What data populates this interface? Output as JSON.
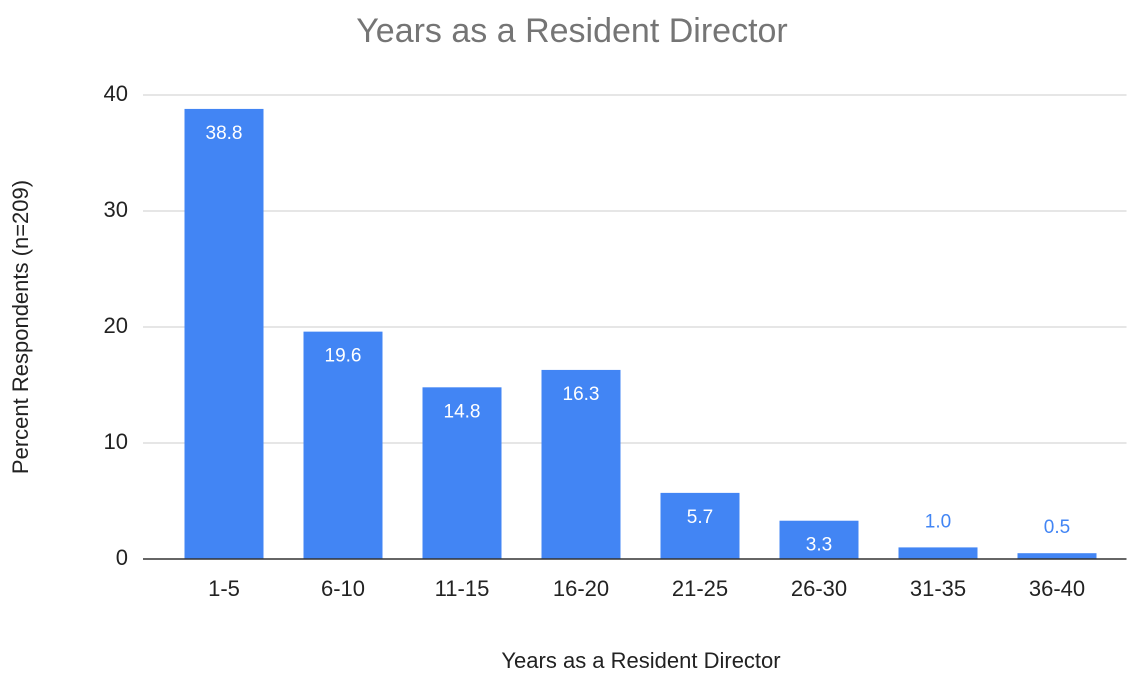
{
  "chart_data": {
    "type": "bar",
    "title": "Years as a Resident Director",
    "x_label": "Years as a Resident Director",
    "y_label": "Percent Respondents (n=209)",
    "categories": [
      "1-5",
      "6-10",
      "11-15",
      "16-20",
      "21-25",
      "26-30",
      "31-35",
      "36-40"
    ],
    "values": [
      38.8,
      19.6,
      14.8,
      16.3,
      5.7,
      3.3,
      1.0,
      0.5
    ],
    "value_labels": [
      "38.8",
      "19.6",
      "14.8",
      "16.3",
      "5.7",
      "3.3",
      "1.0",
      "0.5"
    ],
    "color": "#4285f4",
    "ylim": [
      0,
      40
    ],
    "yticks": [
      0,
      10,
      20,
      30,
      40
    ],
    "grid": true
  }
}
